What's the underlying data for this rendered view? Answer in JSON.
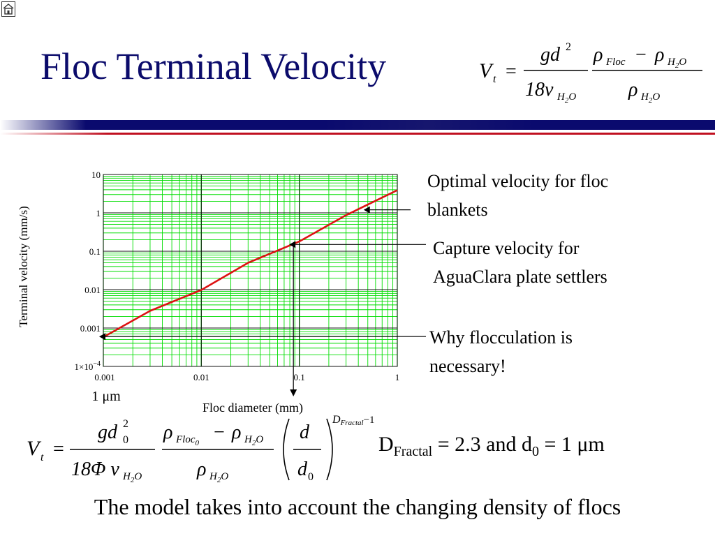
{
  "slide": {
    "title": "Floc Terminal Velocity",
    "colors": {
      "title": "#0b0b6b",
      "band_blue": "#0a0a6e",
      "band_red": "#c01020",
      "grid": "#00dd00",
      "curve": "#dd1111"
    },
    "home_icon": "home-icon"
  },
  "formula_top": {
    "lhs": "V",
    "lhs_sub": "t",
    "eq": "=",
    "num1": "gd",
    "num1_sup": "2",
    "den1": "18ν",
    "den1_sub": "H",
    "den1_sub2": "2",
    "den1_sub3": "O",
    "num2_rho1": "ρ",
    "num2_rho1_sub": "Floc",
    "num2_minus": "−",
    "num2_rho2": "ρ",
    "num2_rho2_sub": "H",
    "num2_rho2_sub2": "2",
    "num2_rho2_sub3": "O",
    "den2_rho": "ρ",
    "den2_sub": "H",
    "den2_sub2": "2",
    "den2_sub3": "O"
  },
  "chart_data": {
    "type": "line",
    "xlabel": "Floc diameter (mm)",
    "ylabel": "Terminal velocity (mm/s)",
    "xscale": "log",
    "yscale": "log",
    "xlim": [
      0.001,
      1
    ],
    "ylim": [
      0.0001,
      10
    ],
    "grid": true,
    "x_ticks": [
      "0.001",
      "0.01",
      "0.1",
      "1"
    ],
    "y_ticks": [
      "10",
      "1",
      "0.1",
      "0.01",
      "0.001"
    ],
    "y_bottom_tick": {
      "base": "1×10",
      "exp": "−4"
    },
    "x_extra_label": "1 μm",
    "series": [
      {
        "x": [
          0.001,
          0.003,
          0.01,
          0.03,
          0.1,
          0.3,
          1
        ],
        "y": [
          0.00058,
          0.0028,
          0.0098,
          0.05,
          0.18,
          0.87,
          3.9
        ]
      }
    ],
    "markers": [
      {
        "x": 0.001,
        "y": 0.0006
      },
      {
        "x": 0.087,
        "y": 0.15
      },
      {
        "x": 0.5,
        "y": 1.2
      }
    ],
    "down_arrow_x": 0.087,
    "annotations": [
      {
        "line1": "Optimal velocity for floc",
        "line2": "blankets"
      },
      {
        "line1": "Capture velocity for",
        "line2": "AguaClara plate settlers"
      },
      {
        "line1": "Why flocculation is",
        "line2": "necessary!"
      }
    ]
  },
  "formula_bottom": {
    "lhs": "V",
    "lhs_sub": "t",
    "eq": "=",
    "num1": "gd",
    "num1_sub": "0",
    "num1_sup": "2",
    "den1": "18Φ ν",
    "den1_sub": "H",
    "den1_sub2": "2",
    "den1_sub3": "O",
    "num2_rho1": "ρ",
    "num2_rho1_sub": "Floc",
    "num2_rho1_sub2": "0",
    "num2_minus": "−",
    "num2_rho2": "ρ",
    "num2_rho2_sub": "H",
    "num2_rho2_sub2": "2",
    "num2_rho2_sub3": "O",
    "den2_rho": "ρ",
    "den2_sub": "H",
    "den2_sub2": "2",
    "den2_sub3": "O",
    "frac_num": "d",
    "frac_den": "d",
    "frac_den_sub": "0",
    "exp_D": "D",
    "exp_sub": "Fractal",
    "exp_tail": "−1"
  },
  "params": {
    "D": "D",
    "D_sub": "Fractal",
    "eq1": " = 2.3 and d",
    "d_sub": "0",
    "eq2": " = 1 μm"
  },
  "footer": "The model takes into account the changing density of flocs"
}
